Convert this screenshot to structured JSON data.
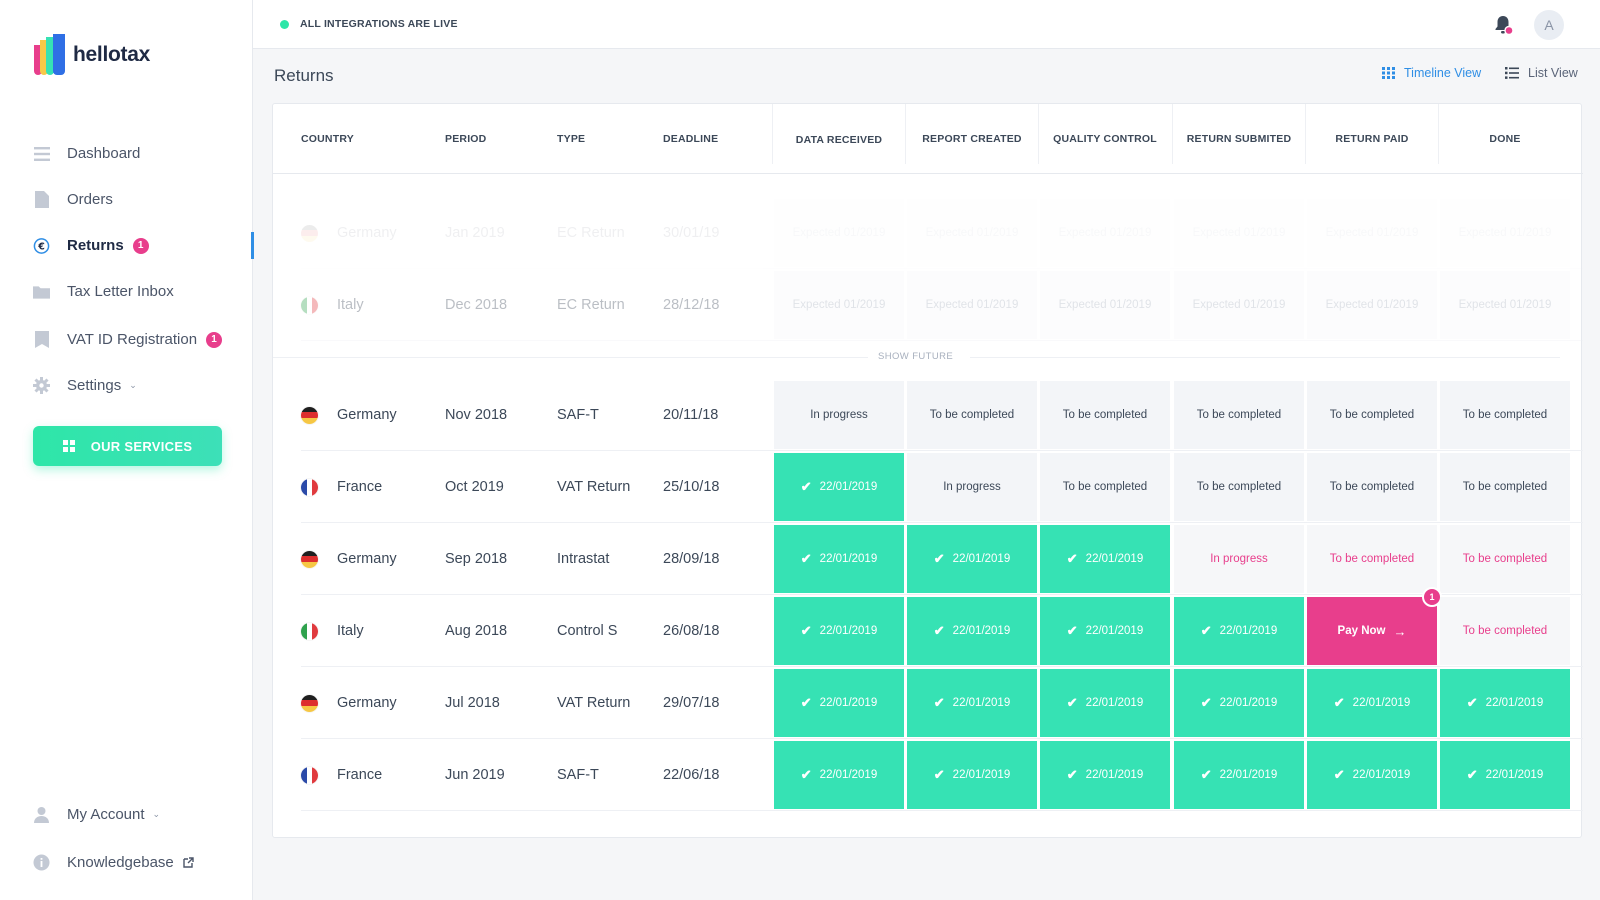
{
  "app": {
    "name": "hellotax"
  },
  "topbar": {
    "status_text": "ALL INTEGRATIONS ARE LIVE",
    "avatar_initial": "A"
  },
  "sidebar": {
    "items": [
      {
        "label": "Dashboard",
        "icon": "dashboard-icon",
        "active": false,
        "badge": ""
      },
      {
        "label": "Orders",
        "icon": "document-icon",
        "active": false,
        "badge": ""
      },
      {
        "label": "Returns",
        "icon": "euro-return-icon",
        "active": true,
        "badge": "1"
      },
      {
        "label": "Tax Letter Inbox",
        "icon": "folder-icon",
        "active": false,
        "badge": ""
      },
      {
        "label": "VAT ID Registration",
        "icon": "bookmark-icon",
        "active": false,
        "badge": "1"
      },
      {
        "label": "Settings",
        "icon": "gear-icon",
        "active": false,
        "badge": ""
      }
    ],
    "services_label": "OUR SERVICES",
    "bottom": [
      {
        "label": "My Account",
        "icon": "user-icon"
      },
      {
        "label": "Knowledgebase",
        "icon": "info-icon"
      }
    ]
  },
  "page": {
    "title": "Returns",
    "timeline_view": "Timeline View",
    "list_view": "List View",
    "show_future": "SHOW FUTURE"
  },
  "table": {
    "columns": [
      "COUNTRY",
      "PERIOD",
      "TYPE",
      "DEADLINE"
    ],
    "stages": [
      "DATA RECEIVED",
      "REPORT CREATED",
      "QUALITY CONTROL",
      "RETURN SUBMITED",
      "RETURN PAID",
      "DONE"
    ],
    "future_rows": [
      {
        "country": "Germany",
        "flag": "de",
        "period": "Jan 2019",
        "type": "EC Return",
        "deadline": "30/01/19",
        "stages": [
          "Expected 01/2019",
          "Expected 01/2019",
          "Expected 01/2019",
          "Expected 01/2019",
          "Expected 01/2019",
          "Expected 01/2019"
        ]
      },
      {
        "country": "Italy",
        "flag": "it",
        "period": "Dec 2018",
        "type": "EC Return",
        "deadline": "28/12/18",
        "stages": [
          "Expected 01/2019",
          "Expected 01/2019",
          "Expected 01/2019",
          "Expected 01/2019",
          "Expected 01/2019",
          "Expected 01/2019"
        ]
      }
    ],
    "rows": [
      {
        "country": "Germany",
        "flag": "de",
        "period": "Nov 2018",
        "type": "SAF-T",
        "deadline": "20/11/18",
        "stages": [
          {
            "text": "In progress",
            "state": "grey"
          },
          {
            "text": "To be completed",
            "state": "grey"
          },
          {
            "text": "To be completed",
            "state": "grey"
          },
          {
            "text": "To be completed",
            "state": "grey"
          },
          {
            "text": "To be completed",
            "state": "grey"
          },
          {
            "text": "To be completed",
            "state": "grey"
          }
        ]
      },
      {
        "country": "France",
        "flag": "fr",
        "period": "Oct 2019",
        "type": "VAT Return",
        "deadline": "25/10/18",
        "stages": [
          {
            "text": "22/01/2019",
            "state": "done"
          },
          {
            "text": "In progress",
            "state": "grey"
          },
          {
            "text": "To be completed",
            "state": "grey"
          },
          {
            "text": "To be completed",
            "state": "grey"
          },
          {
            "text": "To be completed",
            "state": "grey"
          },
          {
            "text": "To be completed",
            "state": "grey"
          }
        ]
      },
      {
        "country": "Germany",
        "flag": "de",
        "period": "Sep 2018",
        "type": "Intrastat",
        "deadline": "28/09/18",
        "stages": [
          {
            "text": "22/01/2019",
            "state": "done"
          },
          {
            "text": "22/01/2019",
            "state": "done"
          },
          {
            "text": "22/01/2019",
            "state": "done"
          },
          {
            "text": "In progress",
            "state": "pink-text"
          },
          {
            "text": "To be completed",
            "state": "pink-text"
          },
          {
            "text": "To be completed",
            "state": "pink-text"
          }
        ]
      },
      {
        "country": "Italy",
        "flag": "it",
        "period": "Aug 2018",
        "type": "Control S",
        "deadline": "26/08/18",
        "stages": [
          {
            "text": "22/01/2019",
            "state": "done"
          },
          {
            "text": "22/01/2019",
            "state": "done"
          },
          {
            "text": "22/01/2019",
            "state": "done"
          },
          {
            "text": "22/01/2019",
            "state": "done"
          },
          {
            "text": "Pay Now",
            "state": "paynow",
            "badge": "1"
          },
          {
            "text": "To be completed",
            "state": "pink-text"
          }
        ]
      },
      {
        "country": "Germany",
        "flag": "de",
        "period": "Jul 2018",
        "type": "VAT Return",
        "deadline": "29/07/18",
        "stages": [
          {
            "text": "22/01/2019",
            "state": "done"
          },
          {
            "text": "22/01/2019",
            "state": "done"
          },
          {
            "text": "22/01/2019",
            "state": "done"
          },
          {
            "text": "22/01/2019",
            "state": "done"
          },
          {
            "text": "22/01/2019",
            "state": "done"
          },
          {
            "text": "22/01/2019",
            "state": "done"
          }
        ]
      },
      {
        "country": "France",
        "flag": "fr",
        "period": "Jun 2019",
        "type": "SAF-T",
        "deadline": "22/06/18",
        "stages": [
          {
            "text": "22/01/2019",
            "state": "done"
          },
          {
            "text": "22/01/2019",
            "state": "done"
          },
          {
            "text": "22/01/2019",
            "state": "done"
          },
          {
            "text": "22/01/2019",
            "state": "done"
          },
          {
            "text": "22/01/2019",
            "state": "done"
          },
          {
            "text": "22/01/2019",
            "state": "done"
          }
        ]
      }
    ]
  },
  "colors": {
    "accent": "#36e2b4",
    "pink": "#e83e8c",
    "blue": "#2f8ee5"
  }
}
